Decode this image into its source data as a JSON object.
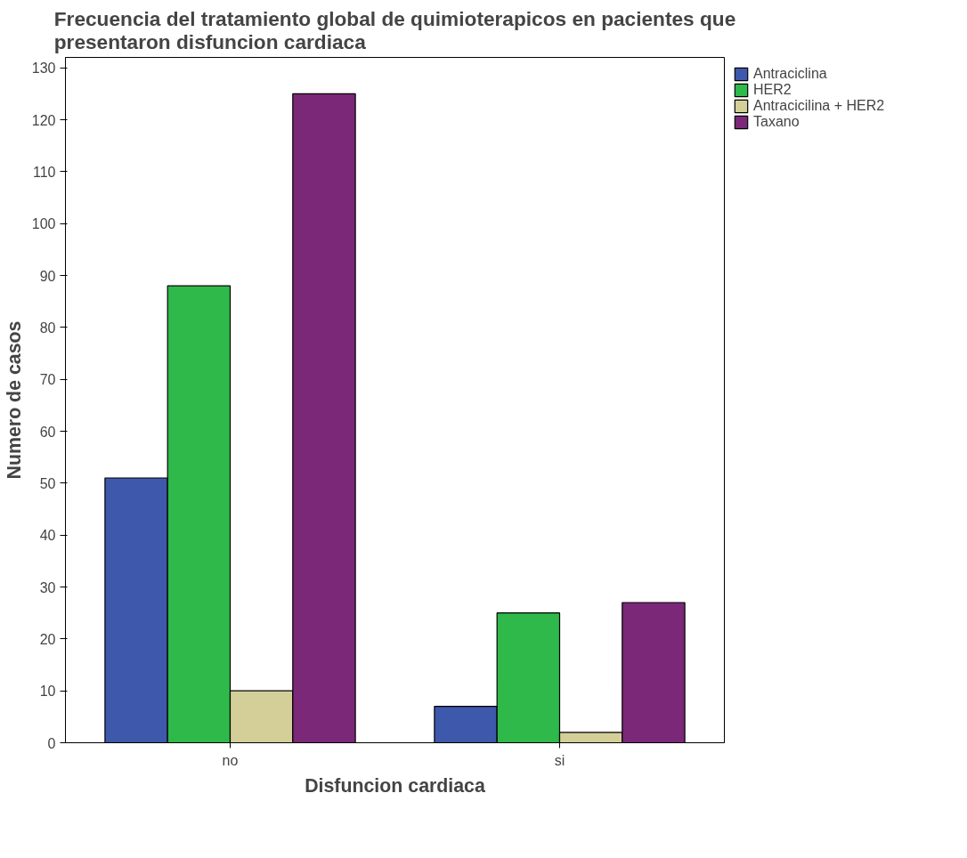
{
  "chart_data": {
    "type": "bar",
    "title": "Frecuencia del tratamiento global de quimioterapicos en pacientes que presentaron disfuncion cardiaca",
    "xlabel": "Disfuncion cardiaca",
    "ylabel": "Numero de casos",
    "categories": [
      "no",
      "si"
    ],
    "series": [
      {
        "name": "Antraciclina",
        "color": "#3e58ac",
        "values": [
          51,
          7
        ]
      },
      {
        "name": "HER2",
        "color": "#2eb94a",
        "values": [
          88,
          25
        ]
      },
      {
        "name": "Antracicilina + HER2",
        "color": "#d4cf98",
        "values": [
          10,
          2
        ]
      },
      {
        "name": "Taxano",
        "color": "#7b2878",
        "values": [
          125,
          27
        ]
      }
    ],
    "ylim": [
      0,
      132
    ],
    "yticks": [
      0,
      10,
      20,
      30,
      40,
      50,
      60,
      70,
      80,
      90,
      100,
      110,
      120,
      130
    ],
    "grid": false,
    "legend": "top right"
  }
}
